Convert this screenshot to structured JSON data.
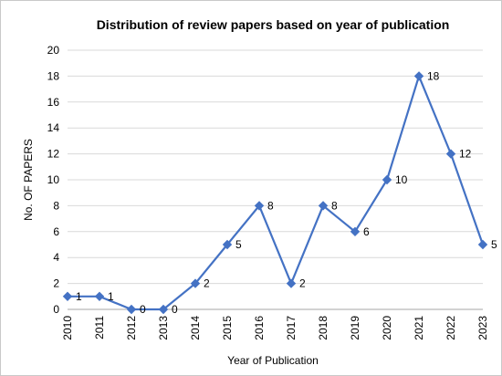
{
  "chart_data": {
    "type": "line",
    "title": "Distribution of review papers based on year of publication",
    "xlabel": "Year of Publication",
    "ylabel": "No. OF PAPERS",
    "categories": [
      "2010",
      "2011",
      "2012",
      "2013",
      "2014",
      "2015",
      "2016",
      "2017",
      "2018",
      "2019",
      "2020",
      "2021",
      "2022",
      "2023"
    ],
    "series": [
      {
        "values": [
          1,
          1,
          0,
          0,
          2,
          5,
          8,
          2,
          8,
          6,
          10,
          18,
          12,
          5
        ]
      }
    ],
    "data_labels": [
      "1",
      "1",
      "0",
      "0",
      "2",
      "5",
      "8",
      "2",
      "8",
      "6",
      "10",
      "18",
      "12",
      "5"
    ],
    "ylim": [
      0,
      20
    ],
    "yticks": [
      "0",
      "2",
      "4",
      "6",
      "8",
      "10",
      "12",
      "14",
      "16",
      "18",
      "20"
    ],
    "grid": true,
    "marker": "diamond",
    "color": "#4472C4"
  }
}
